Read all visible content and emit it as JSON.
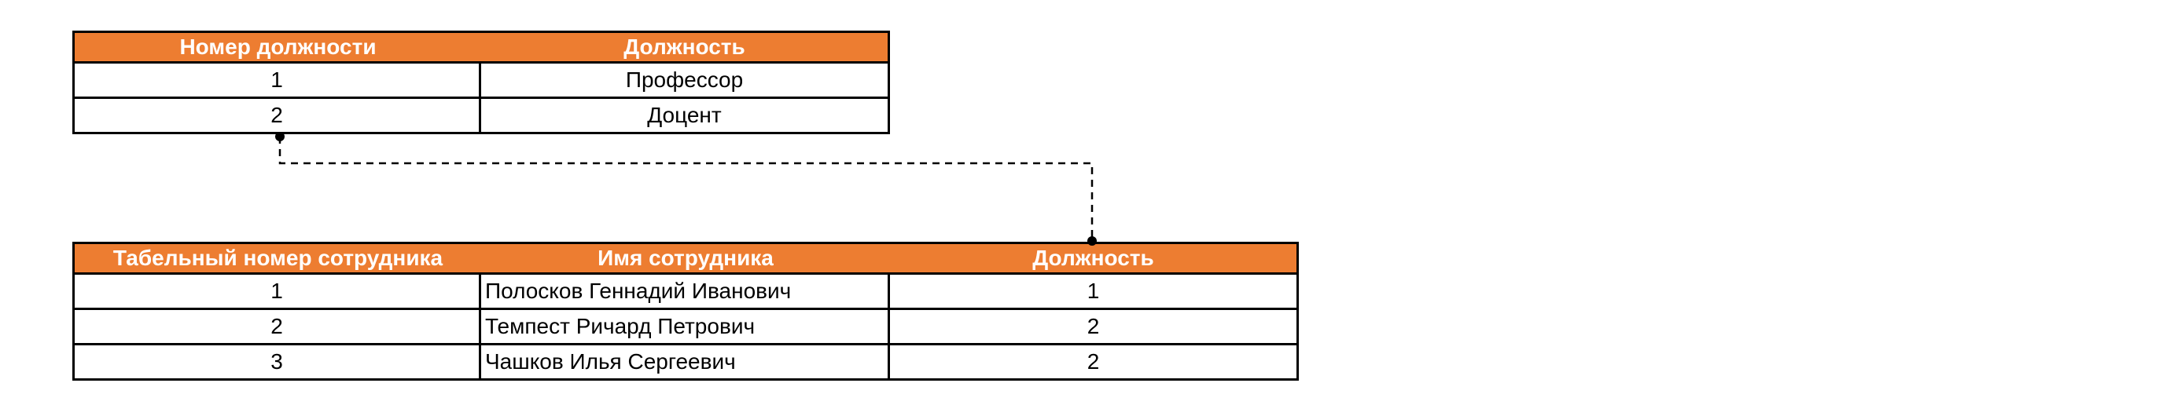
{
  "positions_table": {
    "headers": [
      "Номер должности",
      "Должность"
    ],
    "rows": [
      [
        "1",
        "Профессор"
      ],
      [
        "2",
        "Доцент"
      ]
    ]
  },
  "employees_table": {
    "headers": [
      "Табельный номер сотрудника",
      "Имя сотрудника",
      "Должность"
    ],
    "rows": [
      [
        "1",
        "Полосков Геннадий Иванович",
        "1"
      ],
      [
        "2",
        "Темпест Ричард Петрович",
        "2"
      ],
      [
        "3",
        "Чашков Илья Сергеевич",
        "2"
      ]
    ]
  },
  "colors": {
    "header_bg": "#ED7D31",
    "header_text": "#FFFFFF",
    "border": "#000000"
  }
}
